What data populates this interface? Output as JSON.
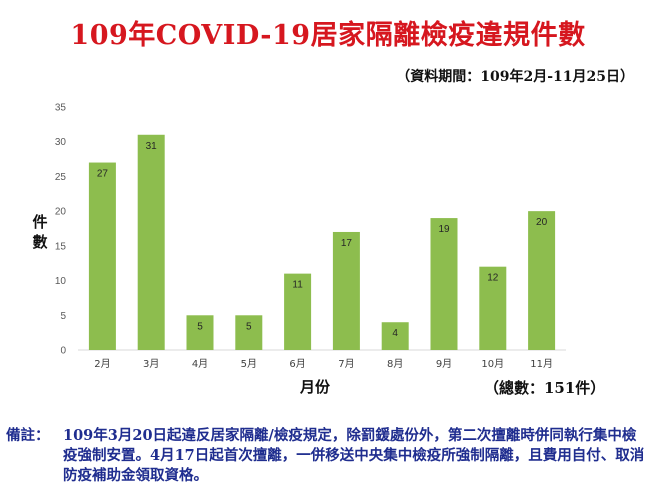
{
  "title": "109年COVID-19居家隔離檢疫違規件數",
  "period": "（資料期間：109年2月-11月25日）",
  "total": "（總數：151件）",
  "note": {
    "label": "備註：",
    "text": "109年3月20日起違反居家隔離/檢疫規定，除罰鍰處份外，第二次擅離時併同執行集中檢疫強制安置。4月17日起首次擅離，一併移送中央集中檢疫所強制隔離，且費用自付、取消防疫補助金領取資格。"
  },
  "colors": {
    "bar": "#8dbd4e",
    "title": "#d6171f",
    "note": "#1f2d8f"
  },
  "chart_data": {
    "type": "bar",
    "categories": [
      "2月",
      "3月",
      "4月",
      "5月",
      "6月",
      "7月",
      "8月",
      "9月",
      "10月",
      "11月"
    ],
    "values": [
      27,
      31,
      5,
      5,
      11,
      17,
      4,
      19,
      12,
      20
    ],
    "xlabel": "月份",
    "ylabel": "件數",
    "ylim": [
      0,
      35
    ],
    "yticks": [
      0,
      5,
      10,
      15,
      20,
      25,
      30,
      35
    ],
    "grid": false,
    "data_labels": true
  }
}
